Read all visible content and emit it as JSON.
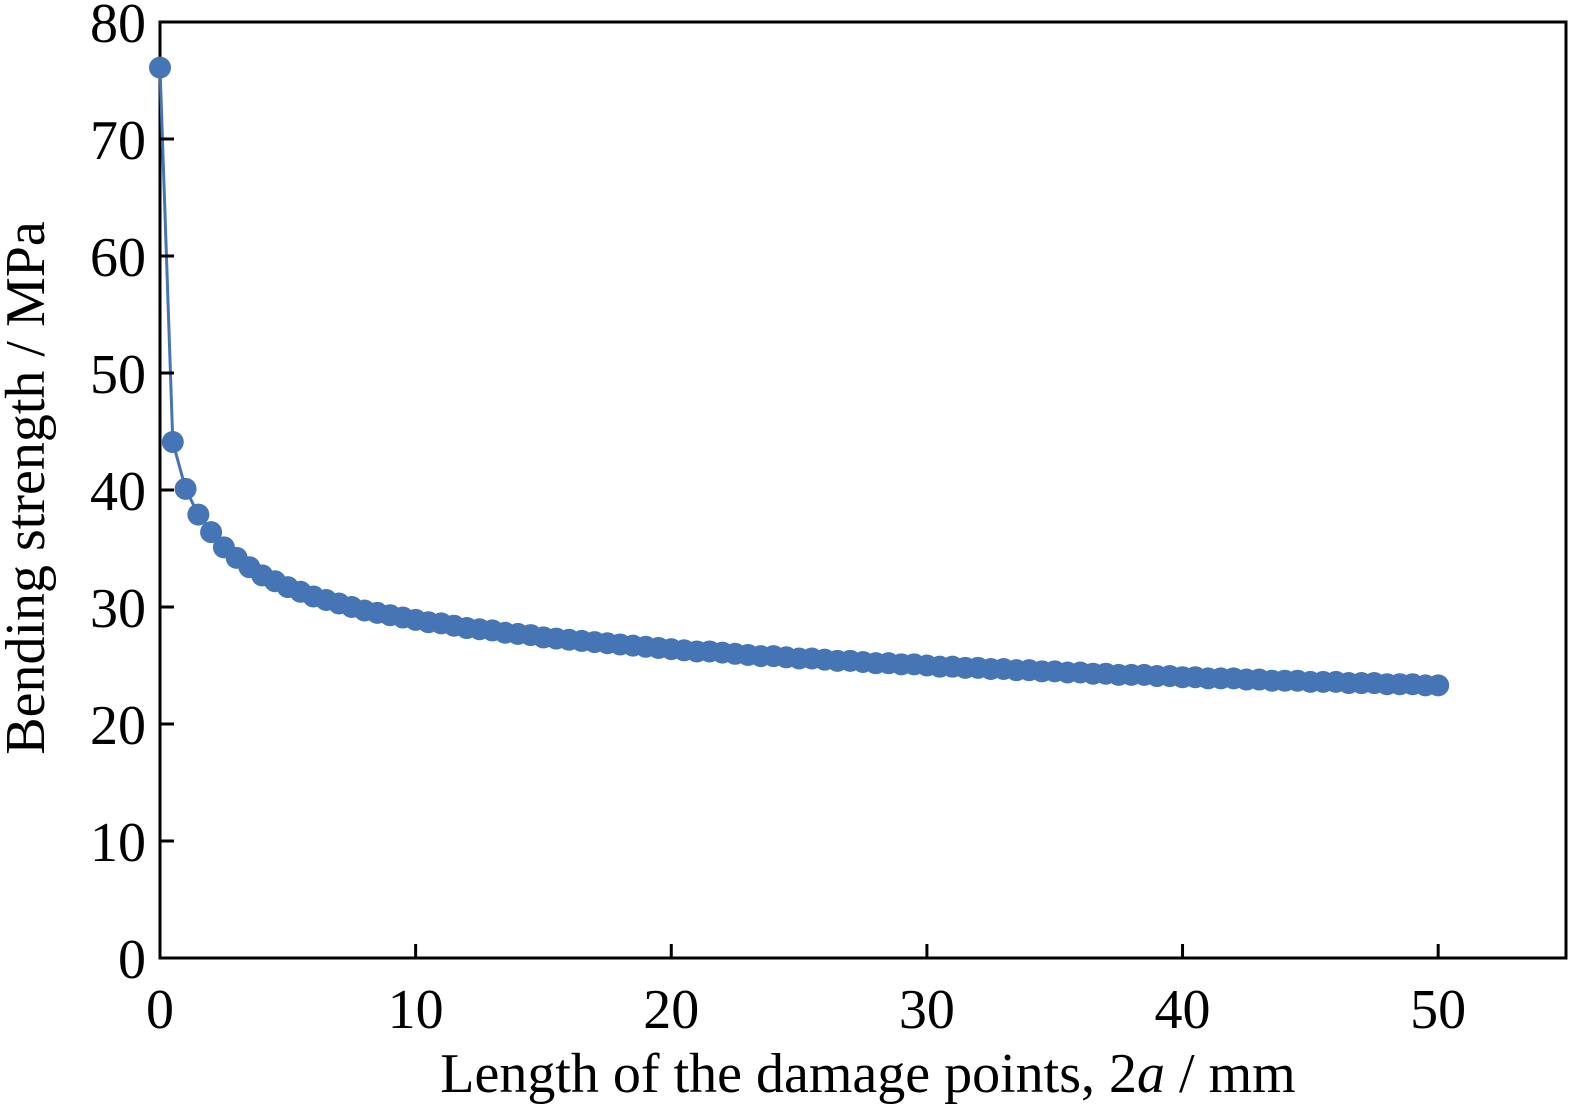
{
  "chart_data": {
    "type": "scatter",
    "title": "",
    "xlabel": "Length of the damage points, 2",
    "xlabel_var": "a",
    "xlabel_unit": " / mm",
    "ylabel": "Bending strength / MPa",
    "xlim": [
      0,
      55
    ],
    "ylim": [
      0,
      80
    ],
    "xticks": [
      0,
      10,
      20,
      30,
      40,
      50
    ],
    "yticks": [
      0,
      10,
      20,
      30,
      40,
      50,
      60,
      70,
      80
    ],
    "grid": false,
    "colors": {
      "series": "#4575b4",
      "axis": "#000000"
    },
    "series": [
      {
        "x": [
          0,
          0.5,
          1,
          1.5,
          2,
          2.5,
          3,
          3.5,
          4,
          4.5,
          5,
          5.5,
          6,
          6.5,
          7,
          7.5,
          8,
          8.5,
          9,
          9.5,
          10,
          10.5,
          11,
          11.5,
          12,
          12.5,
          13,
          13.5,
          14,
          14.5,
          15,
          15.5,
          16,
          16.5,
          17,
          17.5,
          18,
          18.5,
          19,
          19.5,
          20,
          20.5,
          21,
          21.5,
          22,
          22.5,
          23,
          23.5,
          24,
          24.5,
          25,
          25.5,
          26,
          26.5,
          27,
          27.5,
          28,
          28.5,
          29,
          29.5,
          30,
          30.5,
          31,
          31.5,
          32,
          32.5,
          33,
          33.5,
          34,
          34.5,
          35,
          35.5,
          36,
          36.5,
          37,
          37.5,
          38,
          38.5,
          39,
          39.5,
          40,
          40.5,
          41,
          41.5,
          42,
          42.5,
          43,
          43.5,
          44,
          44.5,
          45,
          45.5,
          46,
          46.5,
          47,
          47.5,
          48,
          48.5,
          49,
          49.5,
          50
        ],
        "y": [
          76.1,
          44.1,
          40.1,
          37.9,
          36.4,
          35.1,
          34.2,
          33.4,
          32.7,
          32.2,
          31.7,
          31.3,
          30.9,
          30.6,
          30.3,
          30.0,
          29.7,
          29.5,
          29.3,
          29.1,
          28.9,
          28.7,
          28.6,
          28.4,
          28.2,
          28.1,
          28.0,
          27.8,
          27.7,
          27.6,
          27.4,
          27.3,
          27.2,
          27.1,
          27.0,
          26.9,
          26.8,
          26.7,
          26.6,
          26.5,
          26.4,
          26.3,
          26.2,
          26.2,
          26.1,
          26.0,
          25.9,
          25.8,
          25.8,
          25.7,
          25.6,
          25.6,
          25.5,
          25.4,
          25.4,
          25.3,
          25.2,
          25.2,
          25.1,
          25.1,
          25.0,
          24.9,
          24.9,
          24.8,
          24.8,
          24.7,
          24.7,
          24.6,
          24.6,
          24.5,
          24.5,
          24.4,
          24.4,
          24.3,
          24.3,
          24.2,
          24.2,
          24.2,
          24.1,
          24.1,
          24.0,
          24.0,
          23.9,
          23.9,
          23.9,
          23.8,
          23.8,
          23.7,
          23.7,
          23.7,
          23.6,
          23.6,
          23.6,
          23.5,
          23.5,
          23.5,
          23.4,
          23.4,
          23.4,
          23.3,
          23.3
        ]
      }
    ]
  }
}
